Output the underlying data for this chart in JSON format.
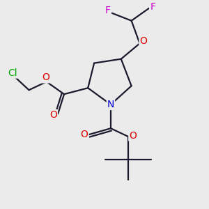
{
  "bg_color": "#ebebeb",
  "atom_colors": {
    "C": "#1a1a2e",
    "N": "#0000cc",
    "O": "#dd0000",
    "F": "#cc00cc",
    "Cl": "#00aa00"
  },
  "bond_color": "#1a1a2e",
  "bond_width": 1.6,
  "figsize": [
    3.0,
    3.0
  ],
  "dpi": 100
}
